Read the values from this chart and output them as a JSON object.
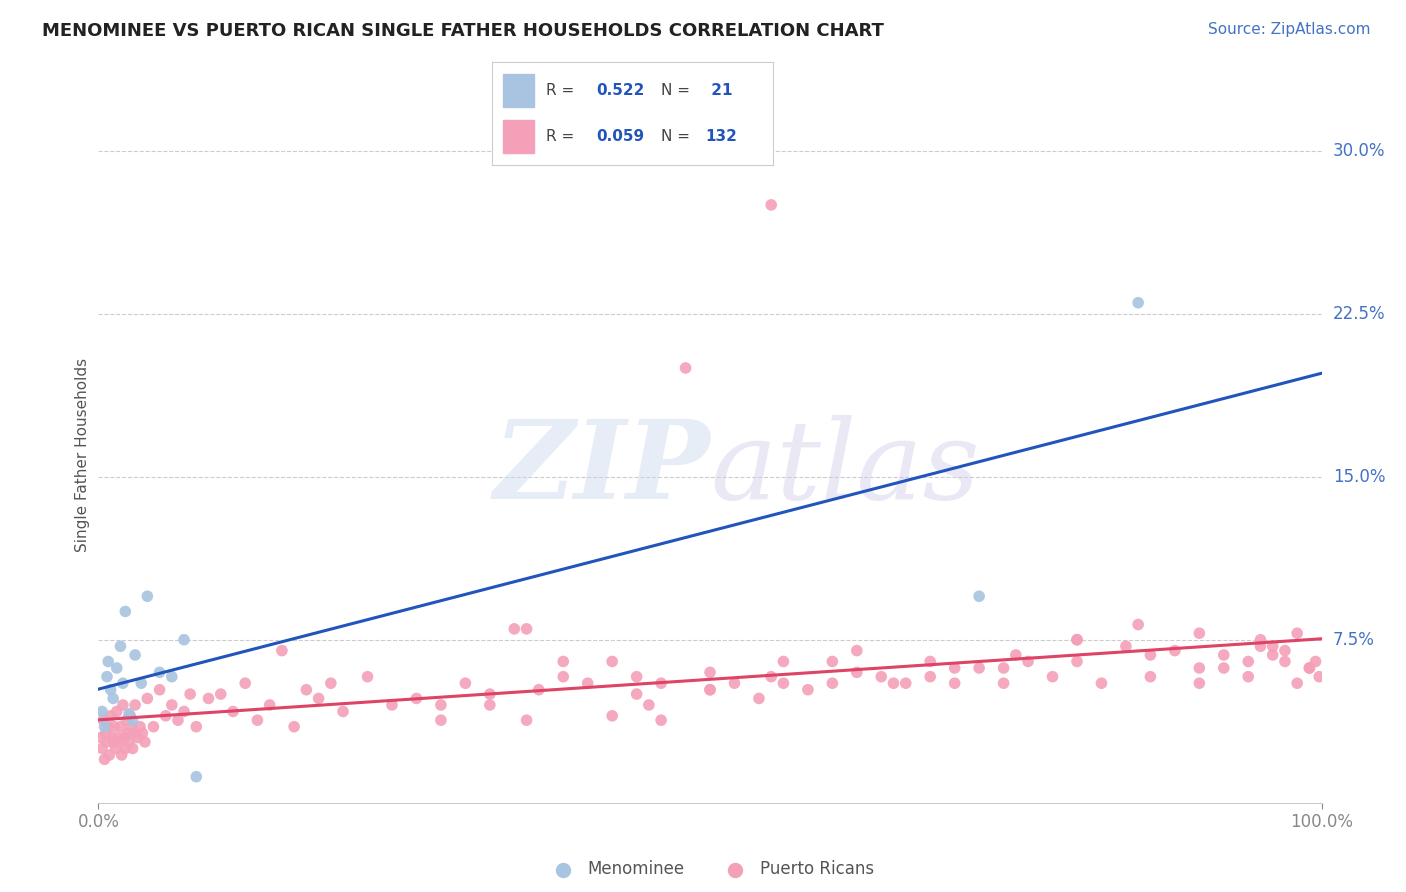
{
  "title": "MENOMINEE VS PUERTO RICAN SINGLE FATHER HOUSEHOLDS CORRELATION CHART",
  "source": "Source: ZipAtlas.com",
  "ylabel": "Single Father Households",
  "xlim": [
    0,
    100
  ],
  "ylim": [
    0,
    32
  ],
  "yticks": [
    0,
    7.5,
    15.0,
    22.5,
    30.0
  ],
  "ytick_labels": [
    "",
    "7.5%",
    "15.0%",
    "22.5%",
    "30.0%"
  ],
  "menominee_color": "#a8c4e0",
  "puerto_rican_color": "#f4a0b8",
  "menominee_line_color": "#2255bb",
  "puerto_rican_line_color": "#dd4466",
  "background_color": "#ffffff",
  "grid_color": "#cccccc",
  "menominee_x": [
    0.3,
    0.5,
    0.7,
    0.8,
    1.0,
    1.2,
    1.5,
    1.8,
    2.0,
    2.2,
    2.5,
    2.8,
    3.0,
    3.5,
    4.0,
    5.0,
    6.0,
    7.0,
    8.0,
    85.0,
    72.0
  ],
  "menominee_y": [
    4.2,
    3.5,
    5.8,
    6.5,
    5.2,
    4.8,
    6.2,
    7.2,
    5.5,
    8.8,
    4.1,
    3.8,
    6.8,
    5.5,
    9.5,
    6.0,
    5.8,
    7.5,
    1.2,
    23.0,
    9.5
  ],
  "puerto_rican_x": [
    0.2,
    0.3,
    0.4,
    0.5,
    0.6,
    0.7,
    0.8,
    0.9,
    1.0,
    1.1,
    1.2,
    1.3,
    1.4,
    1.5,
    1.6,
    1.7,
    1.8,
    1.9,
    2.0,
    2.1,
    2.2,
    2.3,
    2.4,
    2.5,
    2.6,
    2.7,
    2.8,
    2.9,
    3.0,
    3.2,
    3.4,
    3.6,
    3.8,
    4.0,
    4.5,
    5.0,
    5.5,
    6.0,
    6.5,
    7.0,
    7.5,
    8.0,
    9.0,
    10.0,
    11.0,
    12.0,
    13.0,
    14.0,
    15.0,
    16.0,
    17.0,
    18.0,
    19.0,
    20.0,
    22.0,
    24.0,
    26.0,
    28.0,
    30.0,
    32.0,
    34.0,
    36.0,
    38.0,
    40.0,
    42.0,
    44.0,
    46.0,
    48.0,
    50.0,
    52.0,
    54.0,
    56.0,
    58.0,
    60.0,
    62.0,
    64.0,
    66.0,
    68.0,
    70.0,
    72.0,
    74.0,
    76.0,
    78.0,
    80.0,
    82.0,
    84.0,
    86.0,
    88.0,
    90.0,
    92.0,
    94.0,
    95.0,
    96.0,
    97.0,
    98.0,
    99.0,
    99.5,
    99.8,
    55.0,
    46.0,
    35.0,
    42.0,
    28.0,
    32.0,
    38.0,
    44.0,
    50.0,
    56.0,
    62.0,
    68.0,
    74.0,
    80.0,
    86.0,
    90.0,
    92.0,
    94.0,
    96.0,
    97.0,
    98.0,
    99.0,
    35.0,
    45.0,
    50.0,
    55.0,
    60.0,
    65.0,
    70.0,
    75.0,
    80.0,
    85.0,
    90.0,
    95.0
  ],
  "puerto_rican_y": [
    3.0,
    2.5,
    3.8,
    2.0,
    3.2,
    2.8,
    3.5,
    2.2,
    4.0,
    3.0,
    2.8,
    3.5,
    2.5,
    4.2,
    3.0,
    2.8,
    3.5,
    2.2,
    4.5,
    3.0,
    2.5,
    3.8,
    3.2,
    2.8,
    4.0,
    3.5,
    2.5,
    3.2,
    4.5,
    3.0,
    3.5,
    3.2,
    2.8,
    4.8,
    3.5,
    5.2,
    4.0,
    4.5,
    3.8,
    4.2,
    5.0,
    3.5,
    4.8,
    5.0,
    4.2,
    5.5,
    3.8,
    4.5,
    7.0,
    3.5,
    5.2,
    4.8,
    5.5,
    4.2,
    5.8,
    4.5,
    4.8,
    3.8,
    5.5,
    4.5,
    8.0,
    5.2,
    5.8,
    5.5,
    6.5,
    5.0,
    5.5,
    20.0,
    5.2,
    5.5,
    4.8,
    6.5,
    5.2,
    5.5,
    6.0,
    5.8,
    5.5,
    5.8,
    5.5,
    6.2,
    5.5,
    6.5,
    5.8,
    6.5,
    5.5,
    7.2,
    5.8,
    7.0,
    6.2,
    6.8,
    6.5,
    7.2,
    6.8,
    7.0,
    5.5,
    6.2,
    6.5,
    5.8,
    27.5,
    3.8,
    8.0,
    4.0,
    4.5,
    5.0,
    6.5,
    5.8,
    6.0,
    5.5,
    7.0,
    6.5,
    6.2,
    7.5,
    6.8,
    5.5,
    6.2,
    5.8,
    7.2,
    6.5,
    7.8,
    6.2,
    3.8,
    4.5,
    5.2,
    5.8,
    6.5,
    5.5,
    6.2,
    6.8,
    7.5,
    8.2,
    7.8,
    7.5
  ]
}
